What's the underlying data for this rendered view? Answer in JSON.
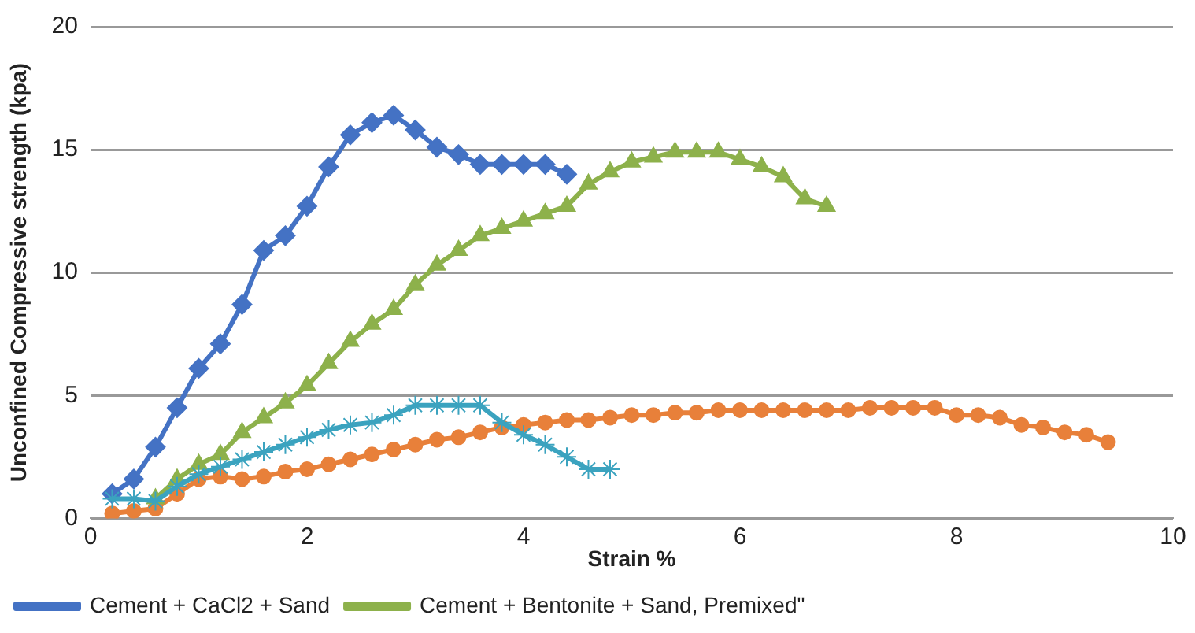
{
  "chart_data": {
    "type": "line",
    "xlabel": "Strain %",
    "ylabel": "Unconfined Compressive strength (kpa)",
    "xlim": [
      0,
      10
    ],
    "xticks": [
      0,
      2,
      4,
      6,
      8,
      10
    ],
    "ylim": [
      0,
      20
    ],
    "yticks": [
      0,
      5,
      10,
      15,
      20
    ],
    "grid": "y",
    "legend": "bottom",
    "line_style": "solid",
    "series": [
      {
        "name": "Cement + CaCl2 + Sand",
        "color": "#4472c4",
        "marker": "diamond",
        "x": [
          0.2,
          0.4,
          0.6,
          0.8,
          1.0,
          1.2,
          1.4,
          1.6,
          1.8,
          2.0,
          2.2,
          2.4,
          2.6,
          2.8,
          3.0,
          3.2,
          3.4,
          3.6,
          3.8,
          4.0,
          4.2,
          4.4
        ],
        "values": [
          1.0,
          1.6,
          2.9,
          4.5,
          6.1,
          7.1,
          8.7,
          10.9,
          11.5,
          12.7,
          14.3,
          15.6,
          16.1,
          16.4,
          15.8,
          15.1,
          14.8,
          14.4,
          14.4,
          14.4,
          14.4,
          14.0
        ]
      },
      {
        "name": "Cement + Bentonite + Sand, Premixed\"",
        "color": "#8db14b",
        "marker": "triangle",
        "x": [
          0.6,
          0.8,
          1.0,
          1.2,
          1.4,
          1.6,
          1.8,
          2.0,
          2.2,
          2.4,
          2.6,
          2.8,
          3.0,
          3.2,
          3.4,
          3.6,
          3.8,
          4.0,
          4.2,
          4.4,
          4.6,
          4.8,
          5.0,
          5.2,
          5.4,
          5.6,
          5.8,
          6.0,
          6.2,
          6.4,
          6.6,
          6.8
        ],
        "values": [
          0.8,
          1.6,
          2.2,
          2.6,
          3.5,
          4.1,
          4.7,
          5.4,
          6.3,
          7.2,
          7.9,
          8.5,
          9.5,
          10.3,
          10.9,
          11.5,
          11.8,
          12.1,
          12.4,
          12.7,
          13.6,
          14.1,
          14.5,
          14.7,
          14.9,
          14.9,
          14.9,
          14.6,
          14.3,
          13.9,
          13.0,
          12.7
        ]
      },
      {
        "color": "#e8803a",
        "marker": "circle",
        "x": [
          0.2,
          0.4,
          0.6,
          0.8,
          1.0,
          1.2,
          1.4,
          1.6,
          1.8,
          2.0,
          2.2,
          2.4,
          2.6,
          2.8,
          3.0,
          3.2,
          3.4,
          3.6,
          3.8,
          4.0,
          4.2,
          4.4,
          4.6,
          4.8,
          5.0,
          5.2,
          5.4,
          5.6,
          5.8,
          6.0,
          6.2,
          6.4,
          6.6,
          6.8,
          7.0,
          7.2,
          7.4,
          7.6,
          7.8,
          8.0,
          8.2,
          8.4,
          8.6,
          8.8,
          9.0,
          9.2,
          9.4
        ],
        "values": [
          0.2,
          0.3,
          0.4,
          1.0,
          1.6,
          1.7,
          1.6,
          1.7,
          1.9,
          2.0,
          2.2,
          2.4,
          2.6,
          2.8,
          3.0,
          3.2,
          3.3,
          3.5,
          3.7,
          3.8,
          3.9,
          4.0,
          4.0,
          4.1,
          4.2,
          4.2,
          4.3,
          4.3,
          4.4,
          4.4,
          4.4,
          4.4,
          4.4,
          4.4,
          4.4,
          4.5,
          4.5,
          4.5,
          4.5,
          4.2,
          4.2,
          4.1,
          3.8,
          3.7,
          3.5,
          3.4,
          3.1
        ]
      },
      {
        "color": "#3ba3bf",
        "marker": "cross",
        "x": [
          0.2,
          0.4,
          0.6,
          0.8,
          1.0,
          1.2,
          1.4,
          1.6,
          1.8,
          2.0,
          2.2,
          2.4,
          2.6,
          2.8,
          3.0,
          3.2,
          3.4,
          3.6,
          3.8,
          4.0,
          4.2,
          4.4,
          4.6,
          4.8
        ],
        "values": [
          0.8,
          0.8,
          0.7,
          1.3,
          1.8,
          2.1,
          2.4,
          2.7,
          3.0,
          3.3,
          3.6,
          3.8,
          3.9,
          4.2,
          4.6,
          4.6,
          4.6,
          4.6,
          3.9,
          3.4,
          3.0,
          2.5,
          2.0,
          2.0
        ]
      }
    ]
  }
}
